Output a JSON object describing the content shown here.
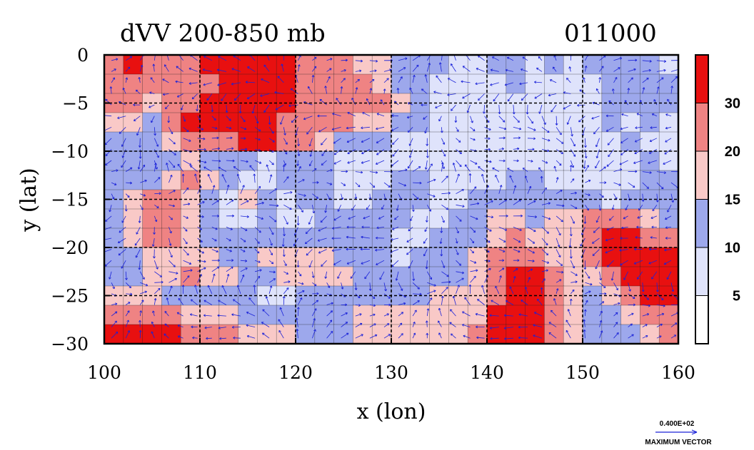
{
  "chart_data": {
    "type": "heatmap",
    "title": "dVV 200-850 mb",
    "subtitle": "011000",
    "xlabel": "x (lon)",
    "ylabel": "y (lat)",
    "xlim": [
      100,
      160
    ],
    "ylim": [
      -30,
      0
    ],
    "x_ticks": [
      100,
      110,
      120,
      130,
      140,
      150,
      160
    ],
    "y_ticks": [
      0,
      -5,
      -10,
      -15,
      -20,
      -25,
      -30
    ],
    "grid": true,
    "overlay": "wind vectors",
    "colorbar": {
      "levels": [
        5,
        10,
        15,
        20,
        30
      ],
      "colors": [
        "#ffffff",
        "#dfe3fb",
        "#9da8ec",
        "#f9c9c7",
        "#ef8383",
        "#e81010"
      ]
    },
    "rows_lat": [
      -1,
      -3,
      -5,
      -7,
      -9,
      -11,
      -13,
      -15,
      -17,
      -19,
      -21,
      -23,
      -25,
      -27,
      -29
    ],
    "cols_lon": [
      101,
      103,
      105,
      107,
      109,
      111,
      113,
      115,
      117,
      119,
      121,
      123,
      125,
      127,
      129,
      131,
      133,
      135,
      137,
      139,
      141,
      143,
      145,
      147,
      149,
      151,
      153,
      155,
      157,
      159
    ],
    "values": [
      [
        25,
        30,
        22,
        20,
        25,
        30,
        35,
        35,
        35,
        35,
        22,
        25,
        20,
        18,
        15,
        12,
        10,
        10,
        8,
        8,
        10,
        12,
        8,
        10,
        5,
        10,
        12,
        10,
        12,
        8
      ],
      [
        22,
        25,
        25,
        22,
        20,
        25,
        35,
        35,
        35,
        35,
        22,
        25,
        25,
        20,
        18,
        12,
        10,
        8,
        8,
        5,
        8,
        10,
        8,
        5,
        5,
        8,
        10,
        12,
        10,
        12
      ],
      [
        20,
        20,
        18,
        22,
        25,
        30,
        35,
        35,
        35,
        35,
        25,
        25,
        22,
        25,
        20,
        15,
        12,
        8,
        8,
        8,
        5,
        5,
        8,
        8,
        5,
        8,
        10,
        12,
        12,
        12
      ],
      [
        18,
        15,
        12,
        22,
        30,
        30,
        30,
        30,
        30,
        25,
        25,
        22,
        20,
        18,
        15,
        12,
        10,
        8,
        8,
        5,
        5,
        8,
        8,
        5,
        5,
        5,
        10,
        8,
        10,
        8
      ],
      [
        12,
        12,
        10,
        15,
        22,
        25,
        25,
        30,
        30,
        25,
        20,
        15,
        12,
        12,
        10,
        8,
        8,
        8,
        8,
        5,
        5,
        8,
        8,
        5,
        5,
        8,
        8,
        10,
        8,
        8
      ],
      [
        10,
        10,
        12,
        12,
        15,
        12,
        12,
        10,
        8,
        10,
        12,
        10,
        8,
        8,
        8,
        8,
        8,
        8,
        8,
        8,
        8,
        8,
        8,
        5,
        5,
        8,
        8,
        8,
        10,
        8
      ],
      [
        10,
        12,
        12,
        15,
        20,
        15,
        10,
        8,
        8,
        10,
        12,
        10,
        8,
        8,
        8,
        10,
        10,
        8,
        8,
        8,
        8,
        10,
        10,
        8,
        8,
        8,
        8,
        8,
        10,
        10
      ],
      [
        12,
        15,
        22,
        20,
        18,
        12,
        8,
        15,
        10,
        8,
        10,
        10,
        8,
        8,
        10,
        12,
        10,
        8,
        8,
        10,
        10,
        12,
        10,
        10,
        10,
        10,
        8,
        10,
        12,
        12
      ],
      [
        12,
        18,
        22,
        22,
        15,
        10,
        8,
        8,
        10,
        8,
        8,
        10,
        10,
        10,
        12,
        10,
        8,
        8,
        10,
        10,
        15,
        15,
        12,
        15,
        15,
        22,
        22,
        20,
        15,
        12
      ],
      [
        10,
        15,
        20,
        20,
        15,
        12,
        10,
        10,
        12,
        12,
        12,
        12,
        10,
        10,
        10,
        8,
        8,
        10,
        10,
        12,
        18,
        22,
        18,
        15,
        18,
        25,
        30,
        30,
        25,
        22
      ],
      [
        10,
        12,
        15,
        18,
        18,
        15,
        12,
        12,
        15,
        15,
        15,
        15,
        12,
        12,
        10,
        8,
        10,
        10,
        12,
        15,
        20,
        25,
        22,
        18,
        15,
        20,
        30,
        35,
        35,
        30
      ],
      [
        12,
        12,
        15,
        18,
        20,
        18,
        15,
        12,
        12,
        15,
        15,
        15,
        15,
        12,
        10,
        10,
        10,
        10,
        12,
        15,
        22,
        30,
        30,
        20,
        15,
        15,
        22,
        30,
        35,
        35
      ],
      [
        15,
        15,
        15,
        12,
        12,
        12,
        10,
        10,
        8,
        8,
        10,
        12,
        12,
        12,
        12,
        12,
        12,
        15,
        15,
        18,
        25,
        35,
        35,
        25,
        15,
        12,
        15,
        22,
        30,
        35
      ],
      [
        25,
        25,
        22,
        20,
        18,
        15,
        15,
        12,
        12,
        10,
        10,
        12,
        12,
        15,
        15,
        15,
        15,
        15,
        15,
        18,
        30,
        35,
        35,
        25,
        15,
        12,
        12,
        15,
        22,
        25
      ],
      [
        35,
        35,
        30,
        30,
        25,
        22,
        20,
        18,
        15,
        15,
        12,
        12,
        12,
        15,
        15,
        15,
        15,
        15,
        15,
        20,
        30,
        35,
        30,
        25,
        15,
        12,
        12,
        12,
        15,
        20
      ]
    ],
    "vector_scale_label": "0.400E+02",
    "vector_label": "MAXIMUM VECTOR"
  }
}
